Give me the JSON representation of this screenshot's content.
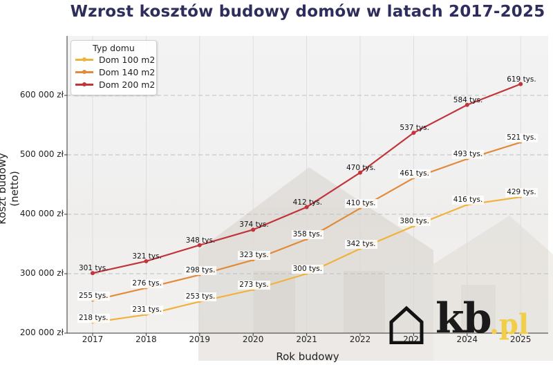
{
  "chart_data": {
    "type": "line",
    "title": "Wzrost kosztów budowy domów w latach 2017-2025",
    "xlabel": "Rok budowy",
    "ylabel": "Koszt budowy (netto)",
    "x": [
      2017,
      2018,
      2019,
      2020,
      2021,
      2022,
      2023,
      2024,
      2025
    ],
    "ylim": [
      200000,
      650000
    ],
    "yticks": [
      200000,
      300000,
      400000,
      500000,
      600000
    ],
    "ytick_labels": [
      "200 000 zł",
      "300 000 zł",
      "400 000 zł",
      "500 000 zł",
      "600 000 zł"
    ],
    "xtick_labels": [
      "2017",
      "2018",
      "2019",
      "2020",
      "2021",
      "2022",
      "2023",
      "2024",
      "2025"
    ],
    "grid": true,
    "legend": {
      "title": "Typ domu",
      "position": "upper left"
    },
    "series": [
      {
        "name": "Dom 100 m2",
        "color": "#f0b23c",
        "values": [
          218000,
          231000,
          253000,
          273000,
          300000,
          342000,
          380000,
          416000,
          429000
        ],
        "labels": [
          "218 tys.",
          "231 tys.",
          "253 tys.",
          "273 tys.",
          "300 tys.",
          "342 tys.",
          "380 tys.",
          "416 tys.",
          "429 tys."
        ]
      },
      {
        "name": "Dom 140 m2",
        "color": "#e08a3a",
        "values": [
          255000,
          276000,
          298000,
          323000,
          358000,
          410000,
          461000,
          493000,
          521000
        ],
        "labels": [
          "255 tys.",
          "276 tys.",
          "298 tys.",
          "323 tys.",
          "358 tys.",
          "410 tys.",
          "461 tys.",
          "493 tys.",
          "521 tys."
        ]
      },
      {
        "name": "Dom 200 m2",
        "color": "#c0343a",
        "values": [
          301000,
          321000,
          348000,
          374000,
          412000,
          470000,
          537000,
          584000,
          619000
        ],
        "labels": [
          "301 tys.",
          "321 tys.",
          "348 tys.",
          "374 tys.",
          "412 tys.",
          "470 tys.",
          "537 tys.",
          "584 tys.",
          "619 tys."
        ]
      }
    ]
  },
  "watermark": {
    "main": "kb",
    "suffix": ".pl"
  }
}
